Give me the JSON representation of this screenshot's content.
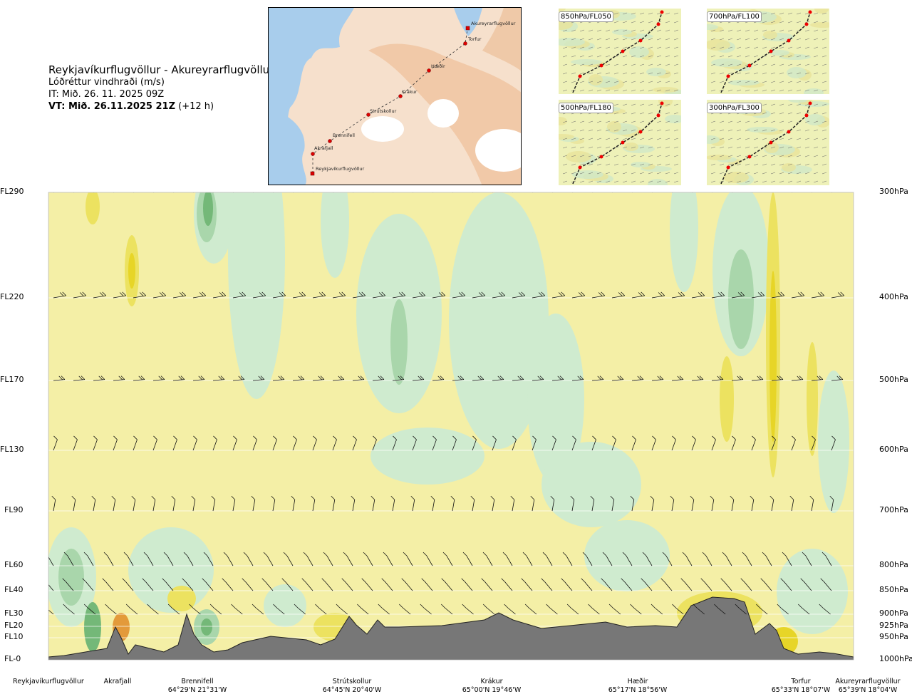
{
  "header": {
    "route": "Reykjavíkurflugvöllur - Akureyrarflugvöllur",
    "variable": "Lóðréttur vindhraði (m/s)",
    "issue": "IT: Mið. 26. 11. 2025 09Z",
    "valid_bold": "VT: Mið. 26.11.2025 21Z",
    "valid_offset": " (+12 h)"
  },
  "map": {
    "waypoints": [
      "Akureyrarflugvöllur",
      "Torfur",
      "Hæðir",
      "Krákur",
      "Strútskollur",
      "Brennifell",
      "Akrafjall",
      "Reykjavíkurflugvöllur"
    ]
  },
  "mini_maps": [
    {
      "label": "850hPa/FL050"
    },
    {
      "label": "700hPa/FL100"
    },
    {
      "label": "500hPa/FL180"
    },
    {
      "label": "300hPa/FL300"
    }
  ],
  "chart_data": {
    "type": "heatmap",
    "variable": "Lóðréttur vindhraði (m/s)",
    "levels": [
      {
        "fl": "FL290",
        "hpa": "300hPa"
      },
      {
        "fl": "FL220",
        "hpa": "400hPa"
      },
      {
        "fl": "FL170",
        "hpa": "500hPa"
      },
      {
        "fl": "FL130",
        "hpa": "600hPa"
      },
      {
        "fl": "FL90",
        "hpa": "700hPa"
      },
      {
        "fl": "FL60",
        "hpa": "800hPa"
      },
      {
        "fl": "FL40",
        "hpa": "850hPa"
      },
      {
        "fl": "FL30",
        "hpa": "900hPa"
      },
      {
        "fl": "FL20",
        "hpa": "925hPa"
      },
      {
        "fl": "FL10",
        "hpa": "950hPa"
      },
      {
        "fl": "FL-0",
        "hpa": "1000hPa"
      }
    ],
    "locations": [
      {
        "name": "Reykjavíkurflugvöllur",
        "coord": ""
      },
      {
        "name": "Akrafjall",
        "coord": ""
      },
      {
        "name": "Brennifell",
        "coord": "64°29'N 21°31'W"
      },
      {
        "name": "Strútskollur",
        "coord": "64°45'N 20°40'W"
      },
      {
        "name": "Krákur",
        "coord": "65°00'N 19°46'W"
      },
      {
        "name": "Hæðir",
        "coord": "65°17'N 18°56'W"
      },
      {
        "name": "Torfur",
        "coord": "65°33'N 18°07'W"
      },
      {
        "name": "Akureyrarflugvöllur",
        "coord": "65°39'N 18°04'W"
      }
    ],
    "colors": {
      "updraft_weak": "#f4efa6",
      "updraft_mod": "#ece260",
      "updraft_strong": "#e7d527",
      "downdraft_weak": "#cfebcf",
      "downdraft_mod": "#a9d6ab",
      "downdraft_strong": "#74b878",
      "neutral": "#fbfbea",
      "terrain": "#777777",
      "hot": "#e39a3a"
    }
  }
}
